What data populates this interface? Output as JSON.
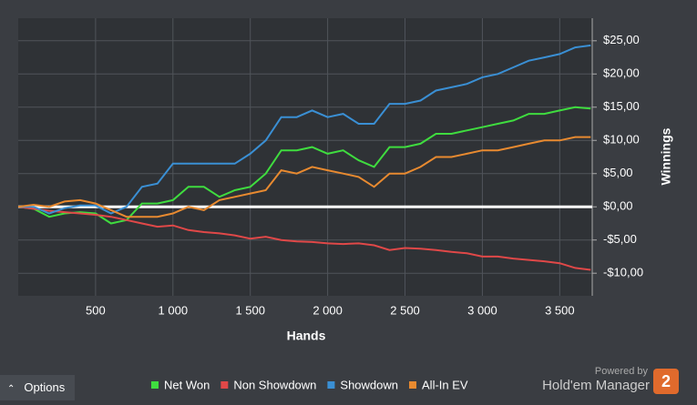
{
  "chart_data": {
    "type": "line",
    "x_label": "Hands",
    "y_label": "Winnings",
    "x": [
      0,
      100,
      200,
      300,
      400,
      500,
      600,
      700,
      800,
      900,
      1000,
      1100,
      1200,
      1300,
      1400,
      1500,
      1600,
      1700,
      1800,
      1900,
      2000,
      2100,
      2200,
      2300,
      2400,
      2500,
      2600,
      2700,
      2800,
      2900,
      3000,
      3100,
      3200,
      3300,
      3400,
      3500,
      3600,
      3700
    ],
    "series": [
      {
        "name": "Net Won",
        "color": "#3fdc3f",
        "values": [
          0,
          -0.3,
          -1.5,
          -1,
          -0.8,
          -1,
          -2.5,
          -2,
          0.5,
          0.5,
          1,
          3,
          3,
          1.5,
          2.5,
          3,
          5,
          8.5,
          8.5,
          9,
          8,
          8.5,
          7,
          6,
          9,
          9,
          9.5,
          11,
          11,
          11.5,
          12,
          12.5,
          13,
          14,
          14,
          14.5,
          15,
          14.8
        ]
      },
      {
        "name": "Non Showdown",
        "color": "#e04848",
        "values": [
          0,
          -0.3,
          -0.6,
          -0.8,
          -1,
          -1.2,
          -1.5,
          -2,
          -2.5,
          -3,
          -2.8,
          -3.5,
          -3.8,
          -4,
          -4.3,
          -4.8,
          -4.5,
          -5,
          -5.2,
          -5.3,
          -5.5,
          -5.6,
          -5.5,
          -5.8,
          -6.5,
          -6.2,
          -6.3,
          -6.5,
          -6.8,
          -7,
          -7.5,
          -7.5,
          -7.8,
          -8,
          -8.2,
          -8.5,
          -9.2,
          -9.5
        ]
      },
      {
        "name": "Showdown",
        "color": "#3a8fd4",
        "values": [
          0,
          0,
          -1,
          -0.2,
          0.2,
          0.2,
          -1,
          0,
          3,
          3.5,
          6.5,
          6.5,
          6.5,
          6.5,
          6.5,
          8,
          10,
          13.5,
          13.5,
          14.5,
          13.5,
          14,
          12.5,
          12.5,
          15.5,
          15.5,
          16,
          17.5,
          18,
          18.5,
          19.5,
          20,
          21,
          22,
          22.5,
          23,
          24,
          24.3
        ]
      },
      {
        "name": "All-In EV",
        "color": "#e88a30",
        "values": [
          0,
          0.3,
          0,
          0.8,
          1,
          0.5,
          -0.5,
          -1.5,
          -1.5,
          -1.5,
          -1,
          0,
          -0.5,
          1,
          1.5,
          2,
          2.5,
          5.5,
          5,
          6,
          5.5,
          5,
          4.5,
          3,
          5,
          5,
          6,
          7.5,
          7.5,
          8,
          8.5,
          8.5,
          9,
          9.5,
          10,
          10,
          10.5,
          10.5
        ]
      }
    ],
    "xlim": [
      0,
      3710
    ],
    "ylim": [
      -13.4,
      28.4
    ],
    "xticks": [
      500,
      {
        "value": 1000,
        "label": "1 000"
      },
      {
        "value": 1500,
        "label": "1 500"
      },
      {
        "value": 2000,
        "label": "2 000"
      },
      {
        "value": 2500,
        "label": "2 500"
      },
      {
        "value": 3000,
        "label": "3 000"
      },
      {
        "value": 3500,
        "label": "3 500"
      }
    ],
    "yticks": [
      {
        "value": 25,
        "label": "$25,00"
      },
      {
        "value": 20,
        "label": "$20,00"
      },
      {
        "value": 15,
        "label": "$15,00"
      },
      {
        "value": 10,
        "label": "$10,00"
      },
      {
        "value": 5,
        "label": "$5,00"
      },
      {
        "value": 0,
        "label": "$0,00"
      },
      {
        "value": -5,
        "label": "-$5,00"
      },
      {
        "value": -10,
        "label": "-$10,00"
      }
    ],
    "grid": true,
    "legend": "bottom"
  },
  "ui": {
    "options": "Options",
    "powered_by": "Powered by",
    "brand": "Hold'em Manager",
    "brand_version": "2"
  }
}
